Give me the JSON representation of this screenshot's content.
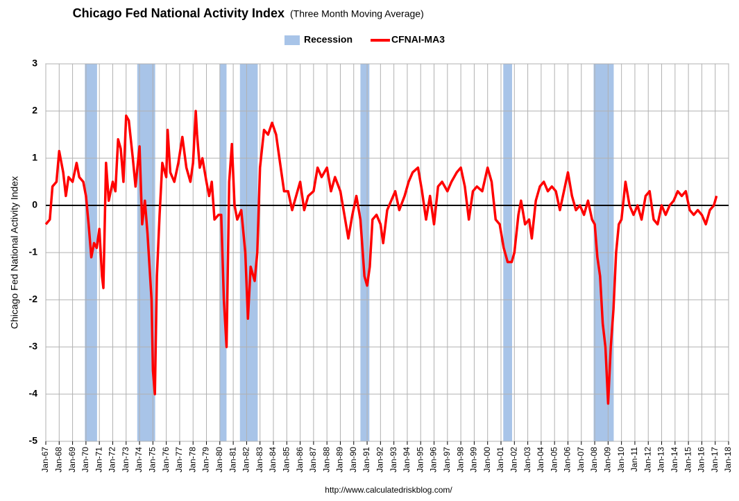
{
  "chart_data": {
    "type": "line",
    "title": "Chicago Fed National Activity Index",
    "subtitle": "(Three Month Moving Average)",
    "y_label": "Chicago Fed National Activity Index",
    "source": "http://www.calculatedriskblog.com/",
    "grid": true,
    "zero_line": true,
    "legend": "top",
    "recessions": {
      "name": "Recession",
      "color": "#a8c4e8",
      "spans": [
        [
          1969.92,
          1970.83
        ],
        [
          1973.83,
          1975.17
        ],
        [
          1980.0,
          1980.5
        ],
        [
          1981.5,
          1982.83
        ],
        [
          1990.5,
          1991.17
        ],
        [
          2001.17,
          2001.83
        ],
        [
          2007.92,
          2009.42
        ]
      ]
    },
    "x": [
      1967.0,
      1967.3,
      1967.5,
      1967.8,
      1968.0,
      1968.3,
      1968.5,
      1968.7,
      1969.0,
      1969.3,
      1969.5,
      1969.8,
      1970.0,
      1970.2,
      1970.4,
      1970.6,
      1970.8,
      1971.0,
      1971.2,
      1971.3,
      1971.5,
      1971.7,
      1972.0,
      1972.2,
      1972.4,
      1972.6,
      1972.8,
      1973.0,
      1973.2,
      1973.5,
      1973.7,
      1974.0,
      1974.2,
      1974.4,
      1974.6,
      1974.9,
      1975.0,
      1975.15,
      1975.3,
      1975.5,
      1975.7,
      1976.0,
      1976.1,
      1976.3,
      1976.6,
      1976.9,
      1977.2,
      1977.5,
      1977.8,
      1978.0,
      1978.2,
      1978.3,
      1978.5,
      1978.7,
      1979.0,
      1979.2,
      1979.4,
      1979.6,
      1979.9,
      1980.1,
      1980.3,
      1980.5,
      1980.7,
      1980.9,
      1981.1,
      1981.3,
      1981.6,
      1981.9,
      1982.1,
      1982.3,
      1982.6,
      1982.8,
      1983.0,
      1983.3,
      1983.6,
      1983.9,
      1984.2,
      1984.5,
      1984.8,
      1985.1,
      1985.4,
      1985.7,
      1986.0,
      1986.3,
      1986.6,
      1987.0,
      1987.3,
      1987.6,
      1988.0,
      1988.3,
      1988.6,
      1989.0,
      1989.3,
      1989.6,
      1989.9,
      1990.2,
      1990.5,
      1990.8,
      1991.0,
      1991.2,
      1991.4,
      1991.7,
      1992.0,
      1992.2,
      1992.5,
      1992.8,
      1993.1,
      1993.4,
      1993.8,
      1994.1,
      1994.4,
      1994.8,
      1995.1,
      1995.4,
      1995.7,
      1996.0,
      1996.3,
      1996.6,
      1997.0,
      1997.3,
      1997.7,
      1998.0,
      1998.3,
      1998.6,
      1998.9,
      1999.2,
      1999.6,
      2000.0,
      2000.3,
      2000.6,
      2000.9,
      2001.2,
      2001.5,
      2001.8,
      2002.0,
      2002.3,
      2002.5,
      2002.8,
      2003.1,
      2003.3,
      2003.6,
      2003.9,
      2004.2,
      2004.5,
      2004.8,
      2005.1,
      2005.4,
      2005.7,
      2006.0,
      2006.3,
      2006.6,
      2006.9,
      2007.2,
      2007.5,
      2007.8,
      2008.0,
      2008.2,
      2008.4,
      2008.6,
      2008.8,
      2009.0,
      2009.2,
      2009.4,
      2009.6,
      2009.8,
      2010.0,
      2010.3,
      2010.6,
      2010.9,
      2011.2,
      2011.5,
      2011.8,
      2012.1,
      2012.4,
      2012.7,
      2013.0,
      2013.3,
      2013.6,
      2013.9,
      2014.2,
      2014.5,
      2014.8,
      2015.1,
      2015.4,
      2015.7,
      2016.0,
      2016.3,
      2016.6,
      2016.9,
      2017.1
    ],
    "series": [
      {
        "name": "CFNAI-MA3",
        "color": "#ff0000",
        "values": [
          -0.4,
          -0.3,
          0.4,
          0.5,
          1.15,
          0.7,
          0.2,
          0.6,
          0.5,
          0.9,
          0.6,
          0.5,
          0.2,
          -0.4,
          -1.1,
          -0.8,
          -0.9,
          -0.5,
          -1.5,
          -1.75,
          0.9,
          0.1,
          0.5,
          0.3,
          1.4,
          1.2,
          0.5,
          1.9,
          1.8,
          1.0,
          0.4,
          1.25,
          -0.4,
          0.1,
          -0.6,
          -2.0,
          -3.5,
          -4.0,
          -1.5,
          -0.2,
          0.9,
          0.6,
          1.6,
          0.7,
          0.5,
          0.9,
          1.45,
          0.8,
          0.5,
          0.9,
          2.0,
          1.5,
          0.8,
          1.0,
          0.5,
          0.2,
          0.5,
          -0.3,
          -0.2,
          -0.2,
          -2.0,
          -3.0,
          0.5,
          1.3,
          0.0,
          -0.3,
          -0.1,
          -1.0,
          -2.4,
          -1.3,
          -1.6,
          -1.0,
          0.8,
          1.6,
          1.5,
          1.75,
          1.5,
          0.9,
          0.3,
          0.3,
          -0.1,
          0.2,
          0.5,
          -0.1,
          0.2,
          0.3,
          0.8,
          0.6,
          0.8,
          0.3,
          0.6,
          0.3,
          -0.2,
          -0.7,
          -0.2,
          0.2,
          -0.3,
          -1.5,
          -1.7,
          -1.3,
          -0.3,
          -0.2,
          -0.4,
          -0.8,
          -0.1,
          0.1,
          0.3,
          -0.1,
          0.2,
          0.5,
          0.7,
          0.8,
          0.3,
          -0.3,
          0.2,
          -0.4,
          0.4,
          0.5,
          0.3,
          0.5,
          0.7,
          0.8,
          0.4,
          -0.3,
          0.3,
          0.4,
          0.3,
          0.8,
          0.5,
          -0.3,
          -0.4,
          -0.9,
          -1.2,
          -1.2,
          -1.0,
          -0.2,
          0.1,
          -0.4,
          -0.3,
          -0.7,
          0.1,
          0.4,
          0.5,
          0.3,
          0.4,
          0.3,
          -0.1,
          0.3,
          0.7,
          0.2,
          -0.1,
          0.0,
          -0.2,
          0.1,
          -0.3,
          -0.4,
          -1.1,
          -1.5,
          -2.5,
          -3.0,
          -4.2,
          -3.0,
          -2.2,
          -1.0,
          -0.4,
          -0.3,
          0.5,
          0.0,
          -0.2,
          0.0,
          -0.3,
          0.2,
          0.3,
          -0.3,
          -0.4,
          0.0,
          -0.2,
          0.0,
          0.1,
          0.3,
          0.2,
          0.3,
          -0.1,
          -0.2,
          -0.1,
          -0.2,
          -0.4,
          -0.1,
          0.0,
          0.2
        ]
      }
    ],
    "xlim": [
      1967,
      2018
    ],
    "xticks": [
      {
        "value": 1967,
        "label": "Jan-67"
      },
      {
        "value": 1968,
        "label": "Jan-68"
      },
      {
        "value": 1969,
        "label": "Jan-69"
      },
      {
        "value": 1970,
        "label": "Jan-70"
      },
      {
        "value": 1971,
        "label": "Jan-71"
      },
      {
        "value": 1972,
        "label": "Jan-72"
      },
      {
        "value": 1973,
        "label": "Jan-73"
      },
      {
        "value": 1974,
        "label": "Jan-74"
      },
      {
        "value": 1975,
        "label": "Jan-75"
      },
      {
        "value": 1976,
        "label": "Jan-76"
      },
      {
        "value": 1977,
        "label": "Jan-77"
      },
      {
        "value": 1978,
        "label": "Jan-78"
      },
      {
        "value": 1979,
        "label": "Jan-79"
      },
      {
        "value": 1980,
        "label": "Jan-80"
      },
      {
        "value": 1981,
        "label": "Jan-81"
      },
      {
        "value": 1982,
        "label": "Jan-82"
      },
      {
        "value": 1983,
        "label": "Jan-83"
      },
      {
        "value": 1984,
        "label": "Jan-84"
      },
      {
        "value": 1985,
        "label": "Jan-85"
      },
      {
        "value": 1986,
        "label": "Jan-86"
      },
      {
        "value": 1987,
        "label": "Jan-87"
      },
      {
        "value": 1988,
        "label": "Jan-88"
      },
      {
        "value": 1989,
        "label": "Jan-89"
      },
      {
        "value": 1990,
        "label": "Jan-90"
      },
      {
        "value": 1991,
        "label": "Jan-91"
      },
      {
        "value": 1992,
        "label": "Jan-92"
      },
      {
        "value": 1993,
        "label": "Jan-93"
      },
      {
        "value": 1994,
        "label": "Jan-94"
      },
      {
        "value": 1995,
        "label": "Jan-95"
      },
      {
        "value": 1996,
        "label": "Jan-96"
      },
      {
        "value": 1997,
        "label": "Jan-97"
      },
      {
        "value": 1998,
        "label": "Jan-98"
      },
      {
        "value": 1999,
        "label": "Jan-99"
      },
      {
        "value": 2000,
        "label": "Jan-00"
      },
      {
        "value": 2001,
        "label": "Jan-01"
      },
      {
        "value": 2002,
        "label": "Jan-02"
      },
      {
        "value": 2003,
        "label": "Jan-03"
      },
      {
        "value": 2004,
        "label": "Jan-04"
      },
      {
        "value": 2005,
        "label": "Jan-05"
      },
      {
        "value": 2006,
        "label": "Jan-06"
      },
      {
        "value": 2007,
        "label": "Jan-07"
      },
      {
        "value": 2008,
        "label": "Jan-08"
      },
      {
        "value": 2009,
        "label": "Jan-09"
      },
      {
        "value": 2010,
        "label": "Jan-10"
      },
      {
        "value": 2011,
        "label": "Jan-11"
      },
      {
        "value": 2012,
        "label": "Jan-12"
      },
      {
        "value": 2013,
        "label": "Jan-13"
      },
      {
        "value": 2014,
        "label": "Jan-14"
      },
      {
        "value": 2015,
        "label": "Jan-15"
      },
      {
        "value": 2016,
        "label": "Jan-16"
      },
      {
        "value": 2017,
        "label": "Jan-17"
      },
      {
        "value": 2018,
        "label": "Jan-18"
      }
    ],
    "ylim": [
      -5,
      3
    ],
    "yticks": [
      -5,
      -4,
      -3,
      -2,
      -1,
      0,
      1,
      2,
      3
    ]
  }
}
